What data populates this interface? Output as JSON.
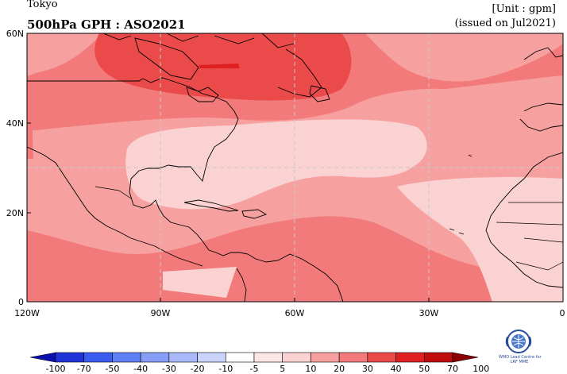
{
  "header": {
    "location": "Tokyo",
    "title": "500hPa GPH : ASO2021",
    "unit": "[Unit : gpm]",
    "issued": "(issued on Jul2021)"
  },
  "map": {
    "lat_ticks": [
      "60N",
      "40N",
      "20N",
      "0"
    ],
    "lon_ticks": [
      "120W",
      "90W",
      "60W",
      "30W",
      "0"
    ],
    "colors": {
      "anomaly_5_10": "#fbd2d2",
      "anomaly_10_20": "#f6a0a0",
      "anomaly_20_30": "#f37a7a",
      "anomaly_30_40": "#ea4a4a",
      "anomaly_40_50": "#e02020"
    }
  },
  "colorbar": {
    "labels": [
      "-100",
      "-70",
      "-50",
      "-40",
      "-30",
      "-20",
      "-10",
      "-5",
      "5",
      "10",
      "20",
      "30",
      "40",
      "50",
      "70",
      "100"
    ],
    "colors": [
      "#0a10b0",
      "#1f33d8",
      "#3a5df0",
      "#6080f5",
      "#879ef7",
      "#a9b8f9",
      "#c9d3fb",
      "#ffffff",
      "#fde6e6",
      "#fbd2d2",
      "#f6a0a0",
      "#f37a7a",
      "#ea4a4a",
      "#e02020",
      "#c00c0c",
      "#8b0000"
    ]
  },
  "logo": {
    "text_line1": "WMO Lead Centre for",
    "text_line2": "LRF MME"
  }
}
